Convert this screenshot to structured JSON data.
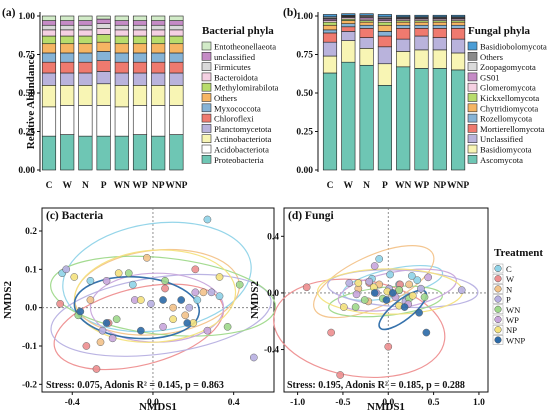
{
  "panels": {
    "a": "(a)",
    "b": "(b)",
    "c": "(c) Bacteria",
    "d": "(d) Fungi"
  },
  "treatments": [
    "C",
    "W",
    "N",
    "P",
    "WN",
    "WP",
    "NP",
    "WNP"
  ],
  "treatment_colors": [
    "#8fd3e8",
    "#ee8f90",
    "#f3c38a",
    "#b7b0e2",
    "#9fd98b",
    "#c8a6dc",
    "#f4e27e",
    "#2b6aa8"
  ],
  "chart_data": [
    {
      "type": "bar",
      "stacked": true,
      "ylabel": "Relative Abundance",
      "ylim": [
        0,
        1
      ],
      "yticks": [
        "0.00",
        "0.25",
        "0.50",
        "0.75",
        "1.00"
      ],
      "categories": [
        "C",
        "W",
        "N",
        "P",
        "WN",
        "WP",
        "NP",
        "WNP"
      ],
      "legend_title": "Bacterial phyla",
      "series": [
        {
          "name": "Proteobacteria",
          "color": "#6ec6b4",
          "values": [
            0.22,
            0.23,
            0.22,
            0.22,
            0.22,
            0.23,
            0.22,
            0.23
          ]
        },
        {
          "name": "Acidobacteriota",
          "color": "#ffffff",
          "values": [
            0.19,
            0.19,
            0.2,
            0.2,
            0.19,
            0.19,
            0.2,
            0.19
          ]
        },
        {
          "name": "Actinobacteriota",
          "color": "#f8f5b4",
          "values": [
            0.14,
            0.13,
            0.13,
            0.14,
            0.14,
            0.13,
            0.13,
            0.13
          ]
        },
        {
          "name": "Planctomycetota",
          "color": "#b9b3dc",
          "values": [
            0.08,
            0.08,
            0.08,
            0.08,
            0.08,
            0.08,
            0.08,
            0.08
          ]
        },
        {
          "name": "Chloroflexi",
          "color": "#ef7a6f",
          "values": [
            0.07,
            0.07,
            0.07,
            0.07,
            0.07,
            0.07,
            0.07,
            0.07
          ]
        },
        {
          "name": "Myxococcota",
          "color": "#86b3d6",
          "values": [
            0.06,
            0.06,
            0.06,
            0.06,
            0.06,
            0.06,
            0.06,
            0.06
          ]
        },
        {
          "name": "Others",
          "color": "#f6b563",
          "values": [
            0.06,
            0.06,
            0.06,
            0.06,
            0.06,
            0.06,
            0.06,
            0.06
          ]
        },
        {
          "name": "Methylomirabilota",
          "color": "#b8dc6c",
          "values": [
            0.05,
            0.05,
            0.05,
            0.05,
            0.05,
            0.05,
            0.05,
            0.05
          ]
        },
        {
          "name": "Bacteroidota",
          "color": "#f5d0e2",
          "values": [
            0.04,
            0.04,
            0.04,
            0.04,
            0.04,
            0.04,
            0.04,
            0.04
          ]
        },
        {
          "name": "Firmicutes",
          "color": "#dadada",
          "values": [
            0.03,
            0.03,
            0.03,
            0.03,
            0.03,
            0.03,
            0.03,
            0.03
          ]
        },
        {
          "name": "unclassified",
          "color": "#c58bc6",
          "values": [
            0.03,
            0.03,
            0.03,
            0.03,
            0.03,
            0.03,
            0.03,
            0.03
          ]
        },
        {
          "name": "Entotheonellaeota",
          "color": "#d2ebc8",
          "values": [
            0.03,
            0.03,
            0.03,
            0.02,
            0.03,
            0.03,
            0.03,
            0.03
          ]
        }
      ]
    },
    {
      "type": "bar",
      "stacked": true,
      "ylim": [
        0,
        1
      ],
      "yticks": [
        "0.00",
        "0.25",
        "0.50",
        "0.75",
        "1.00"
      ],
      "categories": [
        "C",
        "W",
        "N",
        "P",
        "WN",
        "WP",
        "NP",
        "WNP"
      ],
      "legend_title": "Fungal phyla",
      "series": [
        {
          "name": "Ascomycota",
          "color": "#6ec6b4",
          "values": [
            0.63,
            0.7,
            0.68,
            0.55,
            0.67,
            0.66,
            0.66,
            0.65
          ]
        },
        {
          "name": "Basidiomycota",
          "color": "#f8f5b4",
          "values": [
            0.11,
            0.14,
            0.11,
            0.14,
            0.1,
            0.12,
            0.12,
            0.11
          ]
        },
        {
          "name": "Unclassified",
          "color": "#b9b3dc",
          "values": [
            0.09,
            0.06,
            0.07,
            0.11,
            0.08,
            0.09,
            0.08,
            0.09
          ]
        },
        {
          "name": "Mortierellomycota",
          "color": "#ef7a6f",
          "values": [
            0.06,
            0.03,
            0.06,
            0.07,
            0.07,
            0.05,
            0.06,
            0.07
          ]
        },
        {
          "name": "Rozellomycota",
          "color": "#86b3d6",
          "values": [
            0.02,
            0.02,
            0.02,
            0.03,
            0.02,
            0.02,
            0.02,
            0.02
          ]
        },
        {
          "name": "Chytridiomycota",
          "color": "#f6b563",
          "values": [
            0.03,
            0.02,
            0.02,
            0.04,
            0.02,
            0.02,
            0.02,
            0.02
          ]
        },
        {
          "name": "Kickxellomycota",
          "color": "#b8dc6c",
          "values": [
            0.02,
            0.01,
            0.01,
            0.02,
            0.01,
            0.01,
            0.01,
            0.01
          ]
        },
        {
          "name": "Glomeromycota",
          "color": "#f5d0e2",
          "values": [
            0.01,
            0.01,
            0.01,
            0.01,
            0.01,
            0.01,
            0.01,
            0.01
          ]
        },
        {
          "name": "GS01",
          "color": "#c58bc6",
          "values": [
            0.01,
            0.005,
            0.01,
            0.01,
            0.005,
            0.005,
            0.005,
            0.005
          ]
        },
        {
          "name": "Zoopagomycota",
          "color": "#dadada",
          "values": [
            0.005,
            0.005,
            0.005,
            0.005,
            0.005,
            0.005,
            0.005,
            0.005
          ]
        },
        {
          "name": "Others",
          "color": "#8a8a8a",
          "values": [
            0.01,
            0.005,
            0.01,
            0.01,
            0.005,
            0.005,
            0.005,
            0.005
          ]
        },
        {
          "name": "Basidiobolomycota",
          "color": "#4a9dd6",
          "values": [
            0.015,
            0.01,
            0.01,
            0.015,
            0.01,
            0.01,
            0.01,
            0.01
          ]
        }
      ]
    },
    {
      "type": "scatter",
      "xlabel": "NMDS1",
      "ylabel": "NMDS2",
      "xlim": [
        -0.55,
        0.6
      ],
      "ylim": [
        -0.22,
        0.26
      ],
      "xticks": [
        -0.4,
        0,
        0.4
      ],
      "xticklabels": [
        "-0.4",
        "0.0",
        "0.4"
      ],
      "yticks": [
        -0.2,
        -0.1,
        0,
        0.1,
        0.2
      ],
      "yticklabels": [
        "-0.2",
        "-0.1",
        "0.0",
        "0.1",
        "0.2"
      ],
      "annotation": "Stress: 0.075, Adonis R² = 0.145, p = 0.863",
      "groups": {
        "C": [
          [
            -0.45,
            0.09
          ],
          [
            -0.31,
            0.07
          ],
          [
            -0.1,
            0.06
          ],
          [
            0.22,
            0.02
          ],
          [
            0.33,
            0.03
          ],
          [
            0.27,
            0.23
          ]
        ],
        "W": [
          [
            -0.46,
            0.01
          ],
          [
            -0.33,
            -0.1
          ],
          [
            -0.22,
            -0.04
          ],
          [
            0.06,
            0.05
          ],
          [
            0.21,
            0.1
          ],
          [
            -0.28,
            -0.16
          ]
        ],
        "N": [
          [
            -0.31,
            0.02
          ],
          [
            -0.03,
            0.13
          ],
          [
            0.1,
            0.0
          ],
          [
            0.16,
            -0.02
          ],
          [
            0.25,
            0.04
          ],
          [
            -0.26,
            -0.09
          ]
        ],
        "P": [
          [
            -0.43,
            0.1
          ],
          [
            -0.25,
            -0.06
          ],
          [
            -0.01,
            0.01
          ],
          [
            0.18,
            0.0
          ],
          [
            0.29,
            0.04
          ],
          [
            0.5,
            -0.13
          ]
        ],
        "WN": [
          [
            -0.37,
            -0.02
          ],
          [
            -0.12,
            0.09
          ],
          [
            0.06,
            0.07
          ],
          [
            0.37,
            -0.05
          ],
          [
            0.43,
            0.06
          ],
          [
            -0.18,
            -0.03
          ]
        ],
        "WP": [
          [
            -0.23,
            0.07
          ],
          [
            -0.09,
            0.02
          ],
          [
            0.05,
            -0.05
          ],
          [
            0.21,
            0.04
          ],
          [
            0.27,
            -0.06
          ],
          [
            -0.2,
            -0.08
          ]
        ],
        "NP": [
          [
            -0.39,
            0.08
          ],
          [
            -0.17,
            0.09
          ],
          [
            -0.06,
            0.02
          ],
          [
            0.1,
            -0.03
          ],
          [
            0.33,
            0.08
          ],
          [
            0.2,
            -0.04
          ]
        ],
        "WNP": [
          [
            -0.36,
            -0.01
          ],
          [
            -0.23,
            -0.04
          ],
          [
            -0.06,
            -0.06
          ],
          [
            0.05,
            0.02
          ],
          [
            0.14,
            0.02
          ],
          [
            0.17,
            -0.04
          ]
        ]
      },
      "ellipses": {
        "C": {
          "cx": 0.02,
          "cy": 0.08,
          "rx": 0.47,
          "ry": 0.14,
          "rot": -8
        },
        "W": {
          "cx": -0.07,
          "cy": -0.05,
          "rx": 0.43,
          "ry": 0.1,
          "rot": -14
        },
        "N": {
          "cx": 0.02,
          "cy": 0.04,
          "rx": 0.41,
          "ry": 0.11,
          "rot": -6
        },
        "P": {
          "cx": 0.04,
          "cy": -0.02,
          "rx": 0.55,
          "ry": 0.1,
          "rot": -8
        },
        "WN": {
          "cx": 0.05,
          "cy": 0.03,
          "rx": 0.56,
          "ry": 0.1,
          "rot": 6
        },
        "WP": {
          "cx": 0.02,
          "cy": 0.0,
          "rx": 0.33,
          "ry": 0.09,
          "rot": 0
        },
        "NP": {
          "cx": 0.01,
          "cy": 0.03,
          "rx": 0.4,
          "ry": 0.12,
          "rot": -4
        },
        "WNP": {
          "cx": -0.08,
          "cy": 0.0,
          "rx": 0.31,
          "ry": 0.08,
          "rot": 4
        }
      }
    },
    {
      "type": "scatter",
      "xlabel": "NMDS1",
      "ylabel": "NMDS2",
      "xlim": [
        -1.15,
        1.1
      ],
      "ylim": [
        -0.7,
        0.6
      ],
      "xticks": [
        -1.0,
        -0.5,
        0,
        0.5,
        1.0
      ],
      "xticklabels": [
        "-1.0",
        "-0.5",
        "0.0",
        "0.5",
        "1.0"
      ],
      "yticks": [
        -0.4,
        0,
        0.4
      ],
      "yticklabels": [
        "-0.4",
        "0.0",
        "0.4"
      ],
      "annotation": "Stress: 0.195, Adonis R² = 0.185, p = 0.288",
      "groups": {
        "C": [
          [
            -0.18,
            0.1
          ],
          [
            0.02,
            0.13
          ],
          [
            0.32,
            0.09
          ],
          [
            0.26,
            0.12
          ],
          [
            -0.1,
            0.24
          ],
          [
            0.12,
            0.06
          ]
        ],
        "W": [
          [
            -0.9,
            0.04
          ],
          [
            -0.63,
            -0.28
          ],
          [
            -0.53,
            -0.58
          ],
          [
            0.0,
            -0.38
          ],
          [
            0.13,
            0.06
          ],
          [
            -0.21,
            0.07
          ]
        ],
        "N": [
          [
            -0.33,
            0.03
          ],
          [
            -0.1,
            0.06
          ],
          [
            0.03,
            0.0
          ],
          [
            0.12,
            0.02
          ],
          [
            0.23,
            0.06
          ],
          [
            -0.22,
            -0.06
          ]
        ],
        "P": [
          [
            -0.43,
            0.07
          ],
          [
            -0.21,
            0.08
          ],
          [
            0.01,
            0.03
          ],
          [
            0.19,
            -0.06
          ],
          [
            0.36,
            0.03
          ],
          [
            0.81,
            0.02
          ]
        ],
        "WN": [
          [
            -0.26,
            -0.05
          ],
          [
            -0.06,
            -0.04
          ],
          [
            0.12,
            0.02
          ],
          [
            0.23,
            -0.04
          ],
          [
            0.4,
            -0.03
          ],
          [
            -0.36,
            -0.1
          ]
        ],
        "WP": [
          [
            -0.35,
            -0.01
          ],
          [
            -0.13,
            0.0
          ],
          [
            0.08,
            -0.03
          ],
          [
            0.22,
            -0.08
          ],
          [
            0.44,
            0.11
          ],
          [
            -0.15,
            0.19
          ]
        ],
        "NP": [
          [
            -0.33,
            0.07
          ],
          [
            -0.16,
            0.04
          ],
          [
            -0.01,
            0.01
          ],
          [
            0.12,
            -0.09
          ],
          [
            0.27,
            -0.02
          ],
          [
            -0.49,
            -0.1
          ]
        ],
        "WNP": [
          [
            -0.15,
            0.0
          ],
          [
            -0.02,
            -0.05
          ],
          [
            0.05,
            0.0
          ],
          [
            0.18,
            -0.1
          ],
          [
            0.34,
            -0.14
          ],
          [
            0.42,
            -0.28
          ]
        ]
      },
      "ellipses": {
        "C": {
          "cx": 0.05,
          "cy": 0.07,
          "rx": 0.56,
          "ry": 0.1,
          "rot": -12
        },
        "W": {
          "cx": -0.32,
          "cy": -0.25,
          "rx": 0.95,
          "ry": 0.34,
          "rot": 8
        },
        "N": {
          "cx": -0.16,
          "cy": 0.08,
          "rx": 0.72,
          "ry": 0.18,
          "rot": -25
        },
        "P": {
          "cx": 0.16,
          "cy": 0.03,
          "rx": 0.83,
          "ry": 0.13,
          "rot": 3
        },
        "WN": {
          "cx": -0.03,
          "cy": -0.06,
          "rx": 0.63,
          "ry": 0.1,
          "rot": -6
        },
        "WP": {
          "cx": 0.1,
          "cy": 0.02,
          "rx": 0.66,
          "ry": 0.13,
          "rot": -10
        },
        "NP": {
          "cx": 0.02,
          "cy": 0.01,
          "rx": 0.8,
          "ry": 0.16,
          "rot": 0
        },
        "WNP": {
          "cx": 0.16,
          "cy": -0.12,
          "rx": 0.32,
          "ry": 0.07,
          "rot": -38
        }
      }
    }
  ],
  "legend_title": "Treatment"
}
